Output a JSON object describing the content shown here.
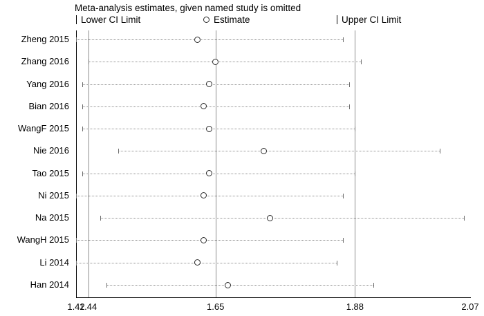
{
  "title": "Meta-analysis estimates, given named study is omitted",
  "legend": {
    "lower": "Lower CI Limit",
    "estimate": "Estimate",
    "upper": "Upper CI Limit"
  },
  "colors": {
    "background": "#ffffff",
    "text": "#000000",
    "axis": "#000000",
    "reference_line": "#8c8c8c",
    "ci_dotted_line": "#8f8f8f",
    "marker_outline": "#2b2b2b",
    "marker_fill": "#ffffff"
  },
  "chart_data": {
    "type": "scatter",
    "subtype": "leave-one-out sensitivity forest plot",
    "title": "Meta-analysis estimates, given named study is omitted",
    "xlabel": "",
    "ylabel": "",
    "xlim": [
      1.42,
      2.07
    ],
    "x_ticks": [
      1.42,
      1.44,
      1.65,
      1.88,
      2.07
    ],
    "ref_lines": [
      1.44,
      1.65,
      1.88
    ],
    "legend": [
      "Lower CI Limit",
      "Estimate",
      "Upper CI Limit"
    ],
    "legend_position": "top",
    "grid": false,
    "studies": [
      {
        "label": "Zheng 2015",
        "lower": 1.42,
        "estimate": 1.62,
        "upper": 1.86
      },
      {
        "label": "Zhang 2016",
        "lower": 1.44,
        "estimate": 1.65,
        "upper": 1.89
      },
      {
        "label": "Yang 2016",
        "lower": 1.43,
        "estimate": 1.64,
        "upper": 1.87
      },
      {
        "label": "Bian 2016",
        "lower": 1.43,
        "estimate": 1.63,
        "upper": 1.87
      },
      {
        "label": "WangF 2015",
        "lower": 1.43,
        "estimate": 1.64,
        "upper": 1.88
      },
      {
        "label": "Nie 2016",
        "lower": 1.49,
        "estimate": 1.73,
        "upper": 2.02
      },
      {
        "label": "Tao 2015",
        "lower": 1.43,
        "estimate": 1.64,
        "upper": 1.88
      },
      {
        "label": "Ni 2015",
        "lower": 1.42,
        "estimate": 1.63,
        "upper": 1.86
      },
      {
        "label": "Na 2015",
        "lower": 1.46,
        "estimate": 1.74,
        "upper": 2.06
      },
      {
        "label": "WangH 2015",
        "lower": 1.42,
        "estimate": 1.63,
        "upper": 1.86
      },
      {
        "label": "Li 2014",
        "lower": 1.42,
        "estimate": 1.62,
        "upper": 1.85
      },
      {
        "label": "Han 2014",
        "lower": 1.47,
        "estimate": 1.67,
        "upper": 1.91
      }
    ]
  }
}
